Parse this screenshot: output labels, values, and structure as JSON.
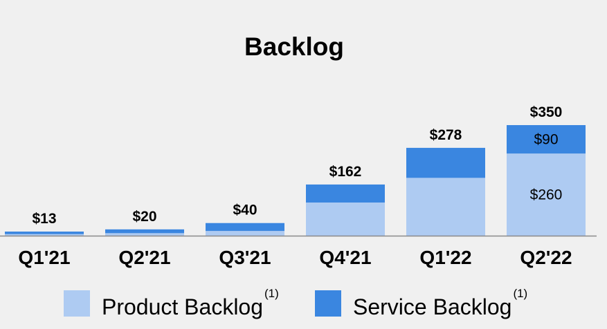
{
  "chart_data": {
    "type": "bar",
    "stacked": true,
    "title": "Backlog",
    "categories": [
      "Q1'21",
      "Q2'21",
      "Q3'21",
      "Q4'21",
      "Q1'22",
      "Q2'22"
    ],
    "totals": [
      13,
      20,
      40,
      162,
      278,
      350
    ],
    "total_labels": [
      "$13",
      "$20",
      "$40",
      "$162",
      "$278",
      "$350"
    ],
    "series": [
      {
        "name": "Product Backlog",
        "superscript": "(1)",
        "color": "#aecbf2",
        "values": [
          5,
          8,
          15,
          105,
          183,
          260
        ],
        "value_labels": [
          null,
          null,
          null,
          null,
          null,
          "$260"
        ]
      },
      {
        "name": "Service Backlog",
        "superscript": "(1)",
        "color": "#3a86e0",
        "values": [
          8,
          12,
          25,
          57,
          95,
          90
        ],
        "value_labels": [
          null,
          null,
          null,
          null,
          null,
          "$90"
        ]
      }
    ],
    "ylim": [
      0,
      350
    ],
    "grid": false,
    "legend_position": "bottom",
    "xlabel": "",
    "ylabel": ""
  }
}
